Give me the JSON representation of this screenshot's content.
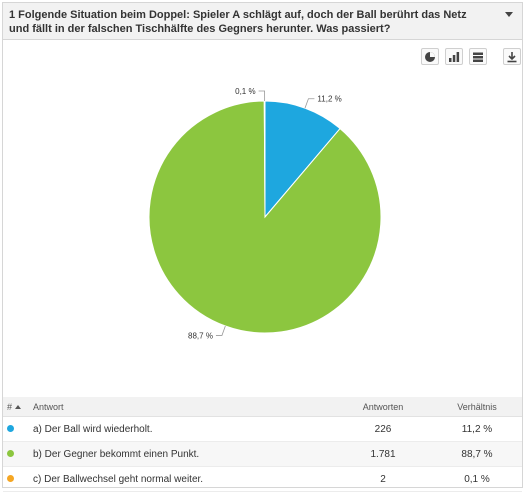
{
  "question": {
    "title": "1 Folgende Situation beim Doppel: Spieler A schlägt auf, doch der Ball berührt das Netz und fällt in der falschen Tischhälfte des Gegners herunter. Was passiert?"
  },
  "toolbar": {
    "icons": [
      "pie-chart-icon",
      "bar-chart-icon",
      "table-icon",
      "download-icon"
    ]
  },
  "table": {
    "headers": {
      "index": "#",
      "answer": "Antwort",
      "count": "Antworten",
      "share": "Verhältnis"
    },
    "rows": [
      {
        "answer": "a) Der Ball wird wiederholt.",
        "count": "226",
        "share": "11,2 %",
        "color": "#1ea7df"
      },
      {
        "answer": "b) Der Gegner bekommt einen Punkt.",
        "count": "1.781",
        "share": "88,7 %",
        "color": "#8cc63f"
      },
      {
        "answer": "c) Der Ballwechsel geht normal weiter.",
        "count": "2",
        "share": "0,1 %",
        "color": "#f5a623"
      }
    ]
  },
  "chart_data": {
    "type": "pie",
    "title": "",
    "slices": [
      {
        "label": "a) Der Ball wird wiederholt.",
        "value": 11.2,
        "display": "11,2 %",
        "color": "#1ea7df"
      },
      {
        "label": "b) Der Gegner bekommt einen Punkt.",
        "value": 88.7,
        "display": "88,7 %",
        "color": "#8cc63f"
      },
      {
        "label": "c) Der Ballwechsel geht normal weiter.",
        "value": 0.1,
        "display": "0,1 %",
        "color": "#f5a623"
      }
    ]
  }
}
